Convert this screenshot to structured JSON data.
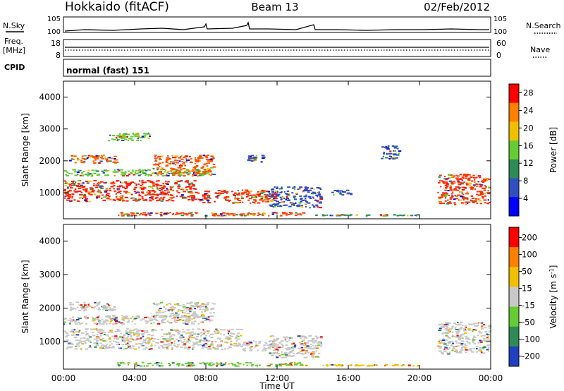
{
  "header": {
    "station": "Hokkaido (fitACF)",
    "beam": "Beam 13",
    "date": "02/Feb/2012"
  },
  "top_panels": {
    "nsky_label": "N.Sky",
    "nsky_tick_hi": "10^5",
    "nsky_tick_lo": "10^0",
    "nsearch_label": "N.Search",
    "freq_label": "Freq.",
    "freq_unit": "[MHz]",
    "freq_tick_hi": "18",
    "freq_tick_lo": "8",
    "nave_tick_hi": "60",
    "nave_tick_lo": "0",
    "nave_label": "Nave",
    "cpid_label": "CPID",
    "cpid_text": "normal (fast) 151"
  },
  "chart_data": [
    {
      "type": "heatmap",
      "name": "power-panel",
      "ylabel": "Slant Range [km]",
      "xlabel": "Time UT",
      "xlim": [
        0,
        24
      ],
      "ylim": [
        180,
        4500
      ],
      "yticks": [
        1000,
        2000,
        3000,
        4000
      ],
      "xticks": [
        "00:00",
        "04:00",
        "08:00",
        "12:00",
        "16:00",
        "20:00",
        "00:00"
      ],
      "colorbar": {
        "label": "Power [dB]",
        "ticks": [
          "4",
          "8",
          "12",
          "16",
          "20",
          "24",
          "28"
        ],
        "range": [
          0,
          30
        ],
        "colors": [
          "#0000ff",
          "#3050c0",
          "#2e8b57",
          "#66cc33",
          "#f0c000",
          "#ff8000",
          "#ff0000"
        ]
      },
      "regions": [
        {
          "t0": 0.0,
          "t1": 7.5,
          "r0": 700,
          "r1": 1400,
          "color": "#ff2000"
        },
        {
          "t0": 7.5,
          "t1": 12.0,
          "r0": 650,
          "r1": 1100,
          "color": "#ff3000"
        },
        {
          "t0": 0.0,
          "t1": 8.3,
          "r0": 1500,
          "r1": 1750,
          "color": "#66cc33"
        },
        {
          "t0": 0.3,
          "t1": 3.0,
          "r0": 1900,
          "r1": 2200,
          "color": "#ff6000"
        },
        {
          "t0": 2.5,
          "t1": 5.0,
          "r0": 2600,
          "r1": 2900,
          "color": "#66cc33"
        },
        {
          "t0": 5.0,
          "t1": 8.5,
          "r0": 1500,
          "r1": 2200,
          "color": "#ff5000"
        },
        {
          "t0": 3.0,
          "t1": 13.5,
          "r0": 250,
          "r1": 400,
          "color": "#ff4000"
        },
        {
          "t0": 13.5,
          "t1": 20.0,
          "r0": 250,
          "r1": 330,
          "color": "#2e8b57"
        },
        {
          "t0": 11.5,
          "t1": 14.5,
          "r0": 500,
          "r1": 1200,
          "color": "#3050c0"
        },
        {
          "t0": 15.0,
          "t1": 16.2,
          "r0": 900,
          "r1": 1100,
          "color": "#3050c0"
        },
        {
          "t0": 10.3,
          "t1": 11.3,
          "r0": 1900,
          "r1": 2200,
          "color": "#3050c0"
        },
        {
          "t0": 17.8,
          "t1": 18.9,
          "r0": 2000,
          "r1": 2500,
          "color": "#3050c0"
        },
        {
          "t0": 21.0,
          "t1": 24.0,
          "r0": 600,
          "r1": 1600,
          "color": "#ff3000"
        }
      ]
    },
    {
      "type": "heatmap",
      "name": "velocity-panel",
      "ylabel": "Slant Range [km]",
      "xlabel": "Time UT",
      "xlim": [
        0,
        24
      ],
      "ylim": [
        180,
        4500
      ],
      "yticks": [
        1000,
        2000,
        3000,
        4000
      ],
      "xticks": [
        "00:00",
        "04:00",
        "08:00",
        "12:00",
        "16:00",
        "20:00",
        "00:00"
      ],
      "colorbar": {
        "label": "Velocity [m s^-1]",
        "ticks": [
          "200",
          "100",
          "50",
          "15",
          "-15",
          "-50",
          "-100",
          "-200"
        ],
        "range": [
          -250,
          250
        ],
        "colors": [
          "#2040c0",
          "#2e8b57",
          "#66cc33",
          "#c8c8c8",
          "#f0c000",
          "#ff8000",
          "#ff0000"
        ]
      },
      "regions": [
        {
          "t0": 0.0,
          "t1": 10.0,
          "r0": 750,
          "r1": 1400,
          "color": "#c8c8c8"
        },
        {
          "t0": 10.0,
          "t1": 12.0,
          "r0": 700,
          "r1": 1050,
          "color": "#c8c8c8"
        },
        {
          "t0": 0.0,
          "t1": 8.3,
          "r0": 1500,
          "r1": 1800,
          "color": "#c8c8c8"
        },
        {
          "t0": 0.3,
          "t1": 3.0,
          "r0": 1900,
          "r1": 2200,
          "color": "#c8c8c8"
        },
        {
          "t0": 5.0,
          "t1": 8.5,
          "r0": 1700,
          "r1": 2200,
          "color": "#c8c8c8"
        },
        {
          "t0": 3.0,
          "t1": 13.5,
          "r0": 250,
          "r1": 400,
          "color": "#66cc33"
        },
        {
          "t0": 13.5,
          "t1": 20.0,
          "r0": 250,
          "r1": 330,
          "color": "#f0c000"
        },
        {
          "t0": 11.5,
          "t1": 14.5,
          "r0": 500,
          "r1": 1200,
          "color": "#c8c8c8"
        },
        {
          "t0": 21.0,
          "t1": 24.0,
          "r0": 600,
          "r1": 1600,
          "color": "#c8c8c8"
        }
      ]
    }
  ]
}
